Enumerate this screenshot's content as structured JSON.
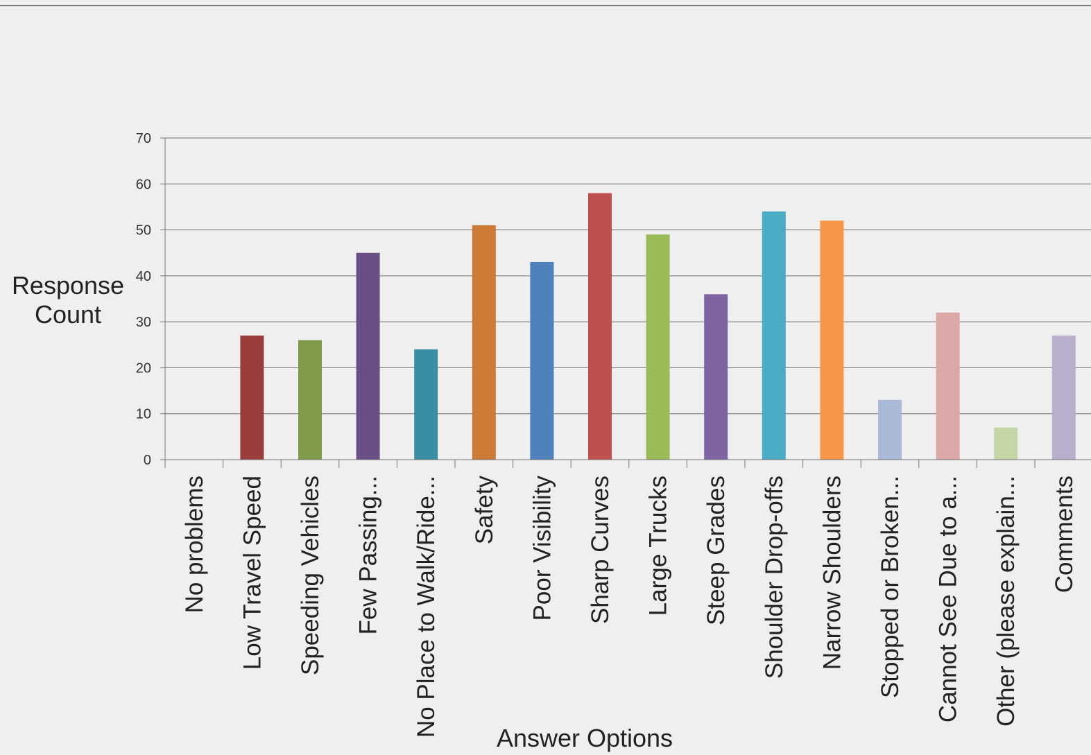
{
  "chart_data": {
    "type": "bar",
    "title": "",
    "ylabel_lines": [
      "Response",
      "Count"
    ],
    "xlabel": "Answer Options",
    "ylim": [
      0,
      70
    ],
    "yticks": [
      "0",
      "10",
      "20",
      "30",
      "40",
      "50",
      "60",
      "70"
    ],
    "grid": true,
    "legend": "none",
    "categories": [
      "No problems",
      "Low Travel Speed",
      "Speeding Vehicles",
      "Few Passing...",
      "No Place to Walk/Ride...",
      "Safety",
      "Poor Visibility",
      "Sharp Curves",
      "Large Trucks",
      "Steep Grades",
      "Shoulder Drop-offs",
      "Narrow Shoulders",
      "Stopped or Broken...",
      "Cannot See Due to a...",
      "Other (please explain...",
      "Comments"
    ],
    "values": [
      0,
      27,
      26,
      45,
      24,
      51,
      43,
      58,
      49,
      36,
      54,
      52,
      13,
      32,
      7,
      27
    ],
    "colors": [
      "#4f81bd",
      "#9c3d3d",
      "#7f9a48",
      "#6a4f87",
      "#3a8ea4",
      "#cc7a36",
      "#4f81bd",
      "#c0504d",
      "#9bbb59",
      "#8064a2",
      "#4bacc6",
      "#f79646",
      "#a9b9d7",
      "#dba8a8",
      "#c4d6a6",
      "#b9aecb"
    ]
  }
}
